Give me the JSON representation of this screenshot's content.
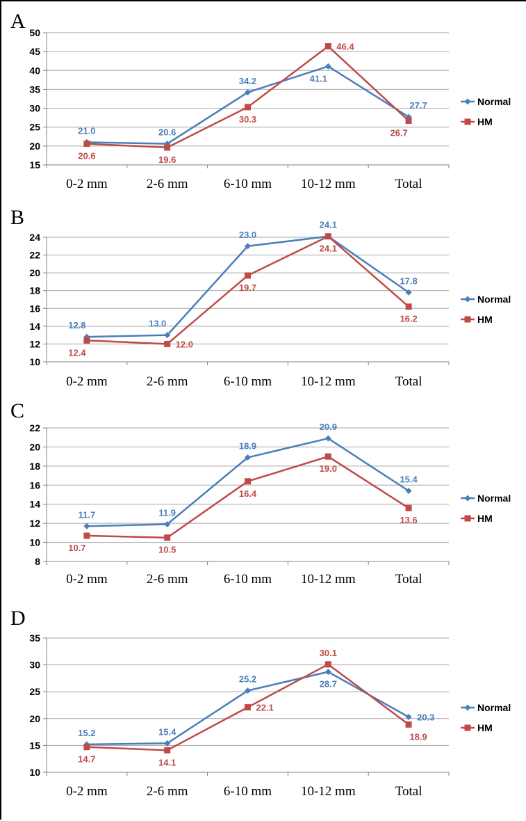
{
  "colors": {
    "normal": "#4a7ebb",
    "hm": "#be4b48",
    "grid": "#a6a6a6",
    "axis": "#808080"
  },
  "chart_data": [
    {
      "type": "line",
      "panel": "A",
      "categories": [
        "0-2 mm",
        "2-6 mm",
        "6-10 mm",
        "10-12 mm",
        "Total"
      ],
      "ylim": [
        15,
        50
      ],
      "yticks": [
        "15",
        "20",
        "25",
        "30",
        "35",
        "40",
        "45",
        "50"
      ],
      "grid": true,
      "legend_position": "right",
      "series": [
        {
          "name": "Normal",
          "values": [
            21.0,
            20.6,
            34.2,
            41.1,
            27.7
          ],
          "labels": [
            "21.0",
            "20.6",
            "34.2",
            "41.1",
            "27.7"
          ],
          "label_pos": [
            "above",
            "above",
            "above",
            "below-left",
            "above-right"
          ]
        },
        {
          "name": "HM",
          "values": [
            20.6,
            19.6,
            30.3,
            46.4,
            26.7
          ],
          "labels": [
            "20.6",
            "19.6",
            "30.3",
            "46.4",
            "26.7"
          ],
          "label_pos": [
            "below",
            "below",
            "below",
            "right",
            "below-left"
          ]
        }
      ]
    },
    {
      "type": "line",
      "panel": "B",
      "categories": [
        "0-2 mm",
        "2-6 mm",
        "6-10 mm",
        "10-12 mm",
        "Total"
      ],
      "ylim": [
        10,
        24
      ],
      "yticks": [
        "10",
        "12",
        "14",
        "16",
        "18",
        "20",
        "22",
        "24"
      ],
      "grid": true,
      "legend_position": "right",
      "series": [
        {
          "name": "Normal",
          "values": [
            12.8,
            13.0,
            23.0,
            24.1,
            17.8
          ],
          "labels": [
            "12.8",
            "13.0",
            "23.0",
            "24.1",
            "17.8"
          ],
          "label_pos": [
            "above-left",
            "above-left",
            "above",
            "above",
            "above"
          ]
        },
        {
          "name": "HM",
          "values": [
            12.4,
            12.0,
            19.7,
            24.1,
            16.2
          ],
          "labels": [
            "12.4",
            "12.0",
            "19.7",
            "24.1",
            "16.2"
          ],
          "label_pos": [
            "below-left",
            "right",
            "below",
            "below",
            "below"
          ]
        }
      ]
    },
    {
      "type": "line",
      "panel": "C",
      "categories": [
        "0-2 mm",
        "2-6 mm",
        "6-10 mm",
        "10-12 mm",
        "Total"
      ],
      "ylim": [
        8,
        22
      ],
      "yticks": [
        "8",
        "10",
        "12",
        "14",
        "16",
        "18",
        "20",
        "22"
      ],
      "grid": true,
      "legend_position": "right",
      "series": [
        {
          "name": "Normal",
          "values": [
            11.7,
            11.9,
            18.9,
            20.9,
            15.4
          ],
          "labels": [
            "11.7",
            "11.9",
            "18.9",
            "20.9",
            "15.4"
          ],
          "label_pos": [
            "above",
            "above",
            "above",
            "above",
            "above"
          ]
        },
        {
          "name": "HM",
          "values": [
            10.7,
            10.5,
            16.4,
            19.0,
            13.6
          ],
          "labels": [
            "10.7",
            "10.5",
            "16.4",
            "19.0",
            "13.6"
          ],
          "label_pos": [
            "below-left",
            "below",
            "below",
            "below",
            "below"
          ]
        }
      ]
    },
    {
      "type": "line",
      "panel": "D",
      "categories": [
        "0-2 mm",
        "2-6 mm",
        "6-10 mm",
        "10-12 mm",
        "Total"
      ],
      "ylim": [
        10,
        35
      ],
      "yticks": [
        "10",
        "15",
        "20",
        "25",
        "30",
        "35"
      ],
      "grid": true,
      "legend_position": "right",
      "series": [
        {
          "name": "Normal",
          "values": [
            15.2,
            15.4,
            25.2,
            28.7,
            20.3
          ],
          "labels": [
            "15.2",
            "15.4",
            "25.2",
            "28.7",
            "20.3"
          ],
          "label_pos": [
            "above",
            "above",
            "above",
            "below",
            "right"
          ]
        },
        {
          "name": "HM",
          "values": [
            14.7,
            14.1,
            22.1,
            30.1,
            18.9
          ],
          "labels": [
            "14.7",
            "14.1",
            "22.1",
            "30.1",
            "18.9"
          ],
          "label_pos": [
            "below",
            "below",
            "right",
            "above",
            "below-right"
          ]
        }
      ]
    }
  ]
}
